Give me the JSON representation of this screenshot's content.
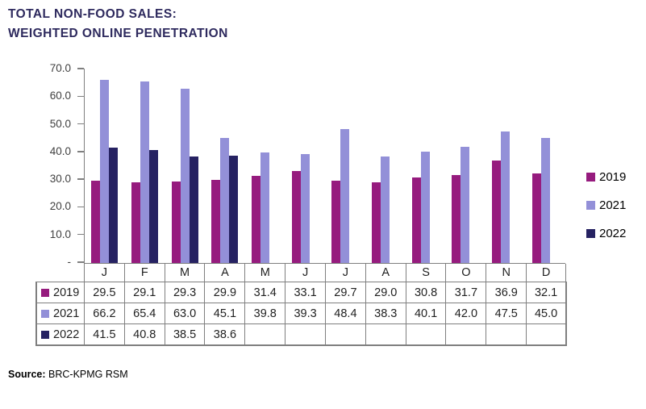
{
  "title": {
    "line1": "TOTAL NON-FOOD SALES:",
    "line2": "WEIGHTED ONLINE PENETRATION"
  },
  "source": {
    "label": "Source:",
    "text": " BRC-KPMG RSM"
  },
  "colors": {
    "title": "#2e2a5e",
    "axis_and_borders": "#7f7f7f",
    "series_2019": "#961b7e",
    "series_2021": "#9390d8",
    "series_2022": "#262262"
  },
  "chart_data": {
    "type": "bar",
    "title": "TOTAL NON-FOOD SALES: WEIGHTED ONLINE PENETRATION",
    "categories": [
      "J",
      "F",
      "M",
      "A",
      "M",
      "J",
      "J",
      "A",
      "S",
      "O",
      "N",
      "D"
    ],
    "series": [
      {
        "name": "2019",
        "color": "#961b7e",
        "values": [
          29.5,
          29.1,
          29.3,
          29.9,
          31.4,
          33.1,
          29.7,
          29.0,
          30.8,
          31.7,
          36.9,
          32.1
        ]
      },
      {
        "name": "2021",
        "color": "#9390d8",
        "values": [
          66.2,
          65.4,
          63.0,
          45.1,
          39.8,
          39.3,
          48.4,
          38.3,
          40.1,
          42.0,
          47.5,
          45.0
        ]
      },
      {
        "name": "2022",
        "color": "#262262",
        "values": [
          41.5,
          40.8,
          38.5,
          38.6,
          null,
          null,
          null,
          null,
          null,
          null,
          null,
          null
        ]
      }
    ],
    "xlabel": "",
    "ylabel": "",
    "ylim": [
      0,
      70
    ],
    "y_tick_labels": [
      "70.0",
      "60.0",
      "50.0",
      "40.0",
      "30.0",
      "20.0",
      "10.0",
      "-"
    ],
    "grid": false,
    "legend_position": "right",
    "data_table_below_chart": true,
    "value_format": "one_decimal"
  }
}
